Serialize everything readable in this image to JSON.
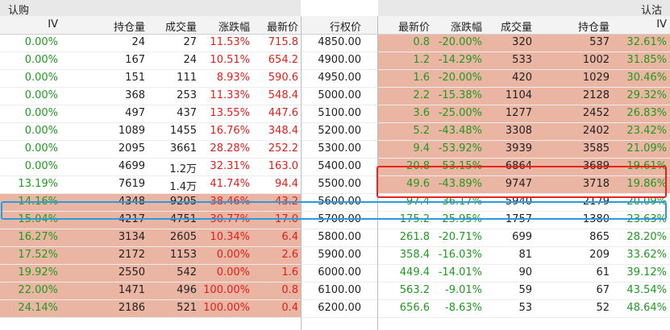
{
  "panel": {
    "call_label": "认购",
    "put_label": "认沽"
  },
  "headers": {
    "iv": "IV",
    "open_interest": "持仓量",
    "volume": "成交量",
    "change_pct": "涨跌幅",
    "last_price": "最新价",
    "strike": "行权价",
    "put_last_price": "最新价",
    "put_change_pct": "涨跌幅",
    "put_volume": "成交量",
    "put_open_interest": "持仓量",
    "put_iv": "IV"
  },
  "colors": {
    "up": "#e0201c",
    "down": "#1f9a1f",
    "in_the_money_bg": "#ebb5a3",
    "highlight_red": "#e8231b",
    "highlight_blue": "#2b9be0"
  },
  "rows": [
    {
      "call_iv": "0.00%",
      "call_oi": "24",
      "call_vol": "27",
      "call_chg": "11.53%",
      "call_px": "715.8",
      "strike": "4850.00",
      "put_px": "0.8",
      "put_chg": "-20.00%",
      "put_vol": "320",
      "put_oi": "537",
      "put_iv": "32.61%",
      "call_itm": false,
      "put_itm": true
    },
    {
      "call_iv": "0.00%",
      "call_oi": "167",
      "call_vol": "24",
      "call_chg": "10.51%",
      "call_px": "654.2",
      "strike": "4900.00",
      "put_px": "1.2",
      "put_chg": "-14.29%",
      "put_vol": "533",
      "put_oi": "1002",
      "put_iv": "31.85%",
      "call_itm": false,
      "put_itm": true
    },
    {
      "call_iv": "0.00%",
      "call_oi": "151",
      "call_vol": "111",
      "call_chg": "8.93%",
      "call_px": "590.6",
      "strike": "4950.00",
      "put_px": "1.6",
      "put_chg": "-20.00%",
      "put_vol": "420",
      "put_oi": "1029",
      "put_iv": "30.46%",
      "call_itm": false,
      "put_itm": true
    },
    {
      "call_iv": "0.00%",
      "call_oi": "368",
      "call_vol": "253",
      "call_chg": "11.33%",
      "call_px": "548.4",
      "strike": "5000.00",
      "put_px": "2.2",
      "put_chg": "-15.38%",
      "put_vol": "1104",
      "put_oi": "2128",
      "put_iv": "29.32%",
      "call_itm": false,
      "put_itm": true
    },
    {
      "call_iv": "0.00%",
      "call_oi": "497",
      "call_vol": "437",
      "call_chg": "13.55%",
      "call_px": "447.6",
      "strike": "5100.00",
      "put_px": "3.6",
      "put_chg": "-25.00%",
      "put_vol": "1277",
      "put_oi": "2452",
      "put_iv": "26.83%",
      "call_itm": false,
      "put_itm": true
    },
    {
      "call_iv": "0.00%",
      "call_oi": "1089",
      "call_vol": "1455",
      "call_chg": "16.76%",
      "call_px": "348.4",
      "strike": "5200.00",
      "put_px": "5.2",
      "put_chg": "-43.48%",
      "put_vol": "3308",
      "put_oi": "2402",
      "put_iv": "23.42%",
      "call_itm": false,
      "put_itm": true
    },
    {
      "call_iv": "0.00%",
      "call_oi": "2095",
      "call_vol": "3661",
      "call_chg": "28.28%",
      "call_px": "252.2",
      "strike": "5300.00",
      "put_px": "9.4",
      "put_chg": "-53.92%",
      "put_vol": "3939",
      "put_oi": "3585",
      "put_iv": "21.09%",
      "call_itm": false,
      "put_itm": true
    },
    {
      "call_iv": "0.00%",
      "call_oi": "4699",
      "call_vol": "1.2万",
      "call_chg": "32.31%",
      "call_px": "163.0",
      "strike": "5400.00",
      "put_px": "20.8",
      "put_chg": "-53.15%",
      "put_vol": "6864",
      "put_oi": "3689",
      "put_iv": "19.61%",
      "call_itm": false,
      "put_itm": true
    },
    {
      "call_iv": "13.19%",
      "call_oi": "7619",
      "call_vol": "1.4万",
      "call_chg": "41.74%",
      "call_px": "94.4",
      "strike": "5500.00",
      "put_px": "49.6",
      "put_chg": "-43.89%",
      "put_vol": "9747",
      "put_oi": "3718",
      "put_iv": "19.86%",
      "call_itm": false,
      "put_itm": true
    },
    {
      "call_iv": "14.16%",
      "call_oi": "4348",
      "call_vol": "9205",
      "call_chg": "38.46%",
      "call_px": "43.2",
      "strike": "5600.00",
      "put_px": "97.4",
      "put_chg": "-36.17%",
      "put_vol": "5940",
      "put_oi": "2179",
      "put_iv": "20.09%",
      "call_itm": true,
      "put_itm": false
    },
    {
      "call_iv": "15.04%",
      "call_oi": "4217",
      "call_vol": "4751",
      "call_chg": "30.77%",
      "call_px": "17.0",
      "strike": "5700.00",
      "put_px": "175.2",
      "put_chg": "-25.95%",
      "put_vol": "1757",
      "put_oi": "1380",
      "put_iv": "23.63%",
      "call_itm": true,
      "put_itm": false
    },
    {
      "call_iv": "16.27%",
      "call_oi": "3134",
      "call_vol": "2605",
      "call_chg": "10.34%",
      "call_px": "6.4",
      "strike": "5800.00",
      "put_px": "261.8",
      "put_chg": "-20.71%",
      "put_vol": "699",
      "put_oi": "865",
      "put_iv": "28.20%",
      "call_itm": true,
      "put_itm": false
    },
    {
      "call_iv": "17.52%",
      "call_oi": "2172",
      "call_vol": "1153",
      "call_chg": "0.00%",
      "call_px": "2.6",
      "strike": "5900.00",
      "put_px": "358.4",
      "put_chg": "-16.03%",
      "put_vol": "81",
      "put_oi": "209",
      "put_iv": "33.62%",
      "call_itm": true,
      "put_itm": false
    },
    {
      "call_iv": "19.92%",
      "call_oi": "2550",
      "call_vol": "542",
      "call_chg": "0.00%",
      "call_px": "1.6",
      "strike": "6000.00",
      "put_px": "449.4",
      "put_chg": "-14.01%",
      "put_vol": "90",
      "put_oi": "61",
      "put_iv": "39.12%",
      "call_itm": true,
      "put_itm": false
    },
    {
      "call_iv": "22.00%",
      "call_oi": "1471",
      "call_vol": "496",
      "call_chg": "100.00%",
      "call_px": "0.8",
      "strike": "6100.00",
      "put_px": "563.2",
      "put_chg": "-9.01%",
      "put_vol": "59",
      "put_oi": "67",
      "put_iv": "43.54%",
      "call_itm": true,
      "put_itm": false
    },
    {
      "call_iv": "24.14%",
      "call_oi": "2186",
      "call_vol": "521",
      "call_chg": "100.00%",
      "call_px": "0.4",
      "strike": "6200.00",
      "put_px": "656.6",
      "put_chg": "-8.63%",
      "put_vol": "53",
      "put_oi": "52",
      "put_iv": "48.64%",
      "call_itm": true,
      "put_itm": false
    }
  ]
}
